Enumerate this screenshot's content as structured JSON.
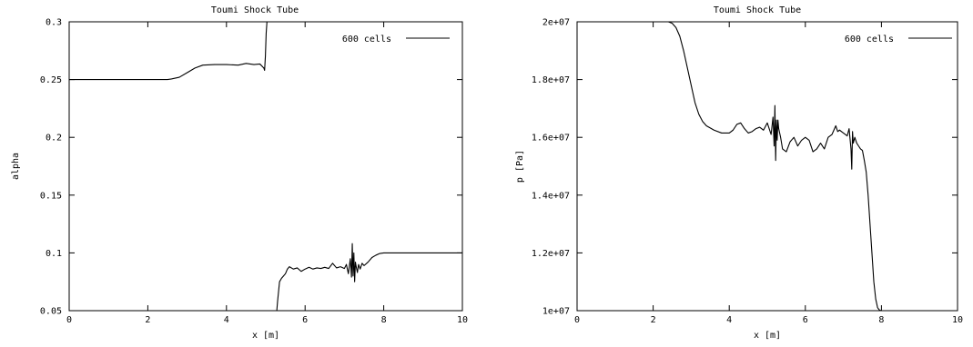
{
  "chart_data": [
    {
      "type": "line",
      "title": "Toumi Shock Tube",
      "xlabel": "x [m]",
      "ylabel": "alpha",
      "xlim": [
        0,
        10
      ],
      "ylim": [
        0.05,
        0.3
      ],
      "xticks": [
        0,
        2,
        4,
        6,
        8,
        10
      ],
      "xtick_labels": [
        "0",
        "2",
        "4",
        "6",
        "8",
        "10"
      ],
      "yticks": [
        0.05,
        0.1,
        0.15,
        0.2,
        0.25,
        0.3
      ],
      "ytick_labels": [
        "0.05",
        "0.1",
        "0.15",
        "0.2",
        "0.25",
        "0.3"
      ],
      "legend": {
        "position": "top-right",
        "entries": [
          "600 cells"
        ]
      },
      "series": [
        {
          "name": "600 cells",
          "x": [
            0,
            2.5,
            2.6,
            2.8,
            3.0,
            3.2,
            3.4,
            3.7,
            4.0,
            4.3,
            4.5,
            4.7,
            4.85,
            4.95,
            4.97,
            4.99,
            5.01,
            5.03,
            null,
            5.28,
            5.3,
            5.35,
            5.4,
            5.45,
            5.5,
            5.55,
            5.6,
            5.7,
            5.8,
            5.9,
            6.0,
            6.1,
            6.2,
            6.3,
            6.4,
            6.5,
            6.6,
            6.7,
            6.8,
            6.9,
            7.0,
            7.05,
            7.1,
            7.15,
            7.18,
            7.2,
            7.22,
            7.24,
            7.26,
            7.28,
            7.3,
            7.33,
            7.36,
            7.4,
            7.45,
            7.5,
            7.6,
            7.7,
            7.8,
            7.9,
            8.0,
            8.2,
            8.5,
            9.0,
            10.0
          ],
          "y": [
            0.25,
            0.25,
            0.2505,
            0.252,
            0.256,
            0.26,
            0.2625,
            0.263,
            0.263,
            0.2625,
            0.264,
            0.263,
            0.2635,
            0.26,
            0.258,
            0.27,
            0.29,
            0.3,
            null,
            0.05,
            0.058,
            0.075,
            0.078,
            0.08,
            0.082,
            0.086,
            0.088,
            0.086,
            0.087,
            0.084,
            0.086,
            0.0875,
            0.086,
            0.087,
            0.0865,
            0.0875,
            0.0865,
            0.091,
            0.087,
            0.088,
            0.0865,
            0.09,
            0.082,
            0.095,
            0.079,
            0.108,
            0.08,
            0.1,
            0.075,
            0.092,
            0.088,
            0.083,
            0.09,
            0.086,
            0.091,
            0.089,
            0.092,
            0.096,
            0.098,
            0.0995,
            0.1,
            0.1,
            0.1,
            0.1,
            0.1
          ]
        }
      ]
    },
    {
      "type": "line",
      "title": "Toumi Shock Tube",
      "xlabel": "x [m]",
      "ylabel": "p [Pa]",
      "xlim": [
        0,
        10
      ],
      "ylim": [
        10000000,
        20000000
      ],
      "xticks": [
        0,
        2,
        4,
        6,
        8,
        10
      ],
      "xtick_labels": [
        "0",
        "2",
        "4",
        "6",
        "8",
        "10"
      ],
      "yticks": [
        10000000,
        12000000,
        14000000,
        16000000,
        18000000,
        20000000
      ],
      "ytick_labels": [
        "1e+07",
        "1.2e+07",
        "1.4e+07",
        "1.6e+07",
        "1.8e+07",
        "2e+07"
      ],
      "legend": {
        "position": "top-right",
        "entries": [
          "600 cells"
        ]
      },
      "series": [
        {
          "name": "600 cells",
          "x": [
            0,
            2.4,
            2.5,
            2.6,
            2.7,
            2.8,
            2.9,
            3.0,
            3.1,
            3.2,
            3.3,
            3.4,
            3.6,
            3.8,
            4.0,
            4.1,
            4.2,
            4.3,
            4.4,
            4.5,
            4.6,
            4.7,
            4.8,
            4.9,
            5.0,
            5.1,
            5.15,
            5.18,
            5.2,
            5.22,
            5.24,
            5.26,
            5.28,
            5.3,
            5.35,
            5.4,
            5.5,
            5.6,
            5.7,
            5.8,
            5.9,
            6.0,
            6.1,
            6.2,
            6.3,
            6.4,
            6.5,
            6.6,
            6.7,
            6.8,
            6.85,
            6.9,
            7.0,
            7.1,
            7.15,
            7.2,
            7.22,
            7.24,
            7.26,
            7.3,
            7.35,
            7.4,
            7.45,
            7.5,
            7.55,
            7.6,
            7.65,
            7.7,
            7.75,
            7.8,
            7.85,
            7.9,
            7.95,
            8.0,
            8.1,
            8.5,
            10.0
          ],
          "y": [
            20000000,
            20000000,
            19950000,
            19800000,
            19500000,
            19000000,
            18400000,
            17800000,
            17200000,
            16800000,
            16550000,
            16400000,
            16250000,
            16150000,
            16150000,
            16250000,
            16450000,
            16500000,
            16300000,
            16150000,
            16200000,
            16300000,
            16350000,
            16250000,
            16500000,
            16100000,
            16700000,
            15700000,
            17100000,
            15200000,
            16600000,
            15900000,
            16600000,
            16300000,
            16000000,
            15600000,
            15500000,
            15850000,
            16000000,
            15700000,
            15900000,
            16000000,
            15900000,
            15500000,
            15600000,
            15800000,
            15600000,
            16000000,
            16100000,
            16400000,
            16200000,
            16250000,
            16150000,
            16050000,
            16300000,
            15600000,
            14900000,
            16200000,
            15800000,
            16000000,
            15800000,
            15700000,
            15600000,
            15550000,
            15200000,
            14800000,
            14000000,
            13000000,
            12000000,
            11000000,
            10400000,
            10100000,
            10020000,
            10000000,
            10000000,
            10000000,
            10000000
          ]
        }
      ]
    }
  ]
}
